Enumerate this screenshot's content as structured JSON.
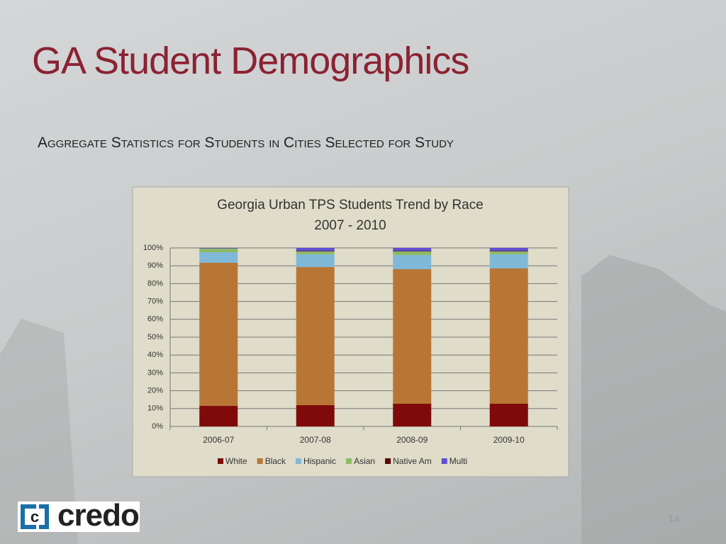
{
  "slide_title": "GA Student Demographics",
  "slide_subtitle": "Aggregate Statistics for Students in Cities Selected for Study",
  "logo": "credo",
  "page_number": "14",
  "chart_data": {
    "type": "stacked_bar",
    "title": "Georgia Urban TPS Students Trend by Race",
    "subtitle": "2007 - 2010",
    "categories": [
      "2006-07",
      "2007-08",
      "2008-09",
      "2009-10"
    ],
    "series": [
      {
        "name": "White",
        "color": "#7f0a0a",
        "values": [
          11.5,
          11.9,
          12.7,
          12.7
        ]
      },
      {
        "name": "Black",
        "color": "#b87636",
        "values": [
          80.2,
          77.4,
          75.4,
          75.8
        ]
      },
      {
        "name": "Hispanic",
        "color": "#80b8d8",
        "values": [
          5.9,
          7.1,
          7.9,
          7.9
        ]
      },
      {
        "name": "Asian",
        "color": "#8dbb62",
        "values": [
          2.0,
          1.6,
          2.0,
          1.6
        ]
      },
      {
        "name": "Native Am",
        "color": "#5a0008",
        "values": [
          0.1,
          0.2,
          0.2,
          0.2
        ]
      },
      {
        "name": "Multi",
        "color": "#6050d0",
        "values": [
          0.3,
          1.8,
          1.8,
          1.8
        ]
      }
    ],
    "ylim": [
      0,
      100
    ],
    "yticks": [
      {
        "value": 0,
        "label": "0%"
      },
      {
        "value": 10,
        "label": "10%"
      },
      {
        "value": 20,
        "label": "20%"
      },
      {
        "value": 30,
        "label": "30%"
      },
      {
        "value": 40,
        "label": "40%"
      },
      {
        "value": 50,
        "label": "50%"
      },
      {
        "value": 60,
        "label": "60%"
      },
      {
        "value": 70,
        "label": "70%"
      },
      {
        "value": 80,
        "label": "80%"
      },
      {
        "value": 90,
        "label": "90%"
      },
      {
        "value": 100,
        "label": "100%"
      }
    ],
    "grid": true,
    "legend": "bottom"
  }
}
